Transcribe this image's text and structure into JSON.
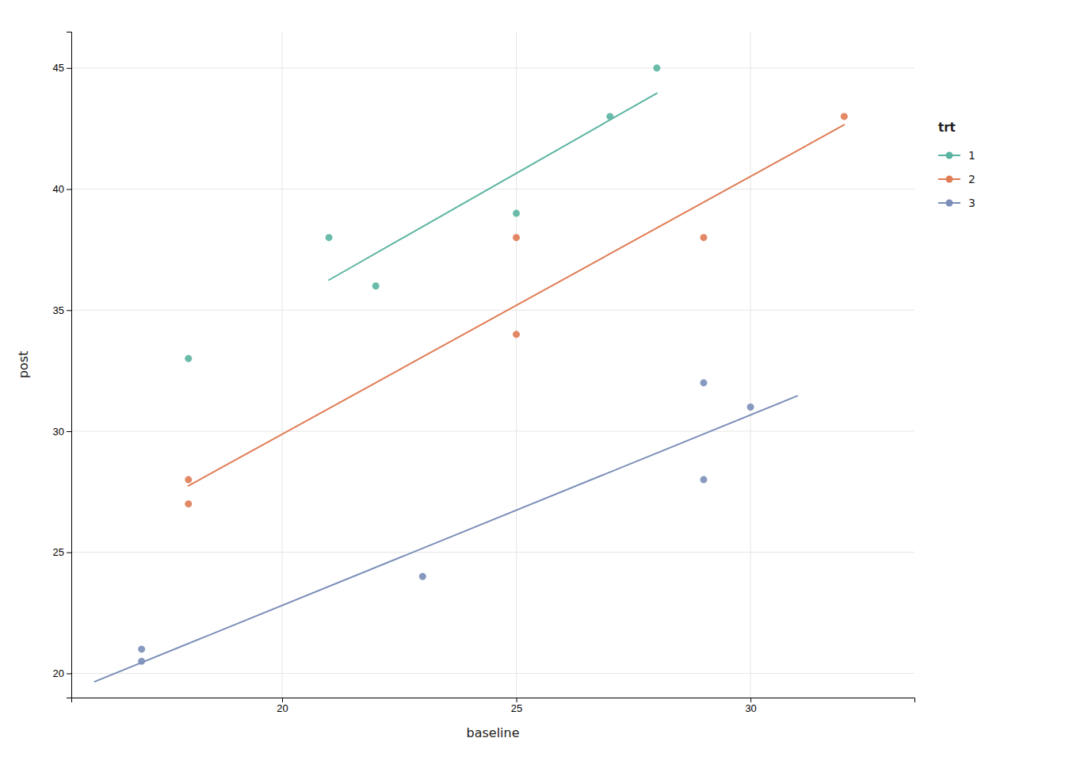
{
  "chart_data": {
    "type": "scatter",
    "xlabel": "baseline",
    "ylabel": "post",
    "legend_title": "trt",
    "legend": "right",
    "grid": true,
    "xlim": [
      15.5,
      33.5
    ],
    "ylim": [
      19.0,
      46.5
    ],
    "xticks": [
      20,
      25,
      30
    ],
    "yticks": [
      20,
      25,
      30,
      35,
      40,
      45
    ],
    "series": [
      {
        "name": "1",
        "color": "#5ab4a0",
        "x": [
          18,
          21,
          22,
          25,
          27,
          28
        ],
        "values": [
          33,
          38,
          36,
          39,
          43,
          45
        ],
        "trendline": {
          "x": [
            21,
            28
          ],
          "values": [
            36.244898,
            43.959184
          ]
        }
      },
      {
        "name": "2",
        "color": "#e07b54",
        "x": [
          18,
          18,
          25,
          25,
          29,
          32
        ],
        "values": [
          27,
          28,
          34,
          38,
          38,
          43
        ],
        "trendline": {
          "x": [
            18,
            32
          ],
          "values": [
            27.744066,
            42.654283
          ]
        }
      },
      {
        "name": "3",
        "color": "#7b8eb8",
        "x": [
          17,
          17,
          23,
          29,
          29,
          30
        ],
        "values": [
          21,
          20.5,
          24,
          32,
          28,
          31
        ],
        "trendline": {
          "x": [
            16,
            31
          ],
          "values": [
            19.658251,
            31.459423
          ]
        }
      }
    ]
  }
}
